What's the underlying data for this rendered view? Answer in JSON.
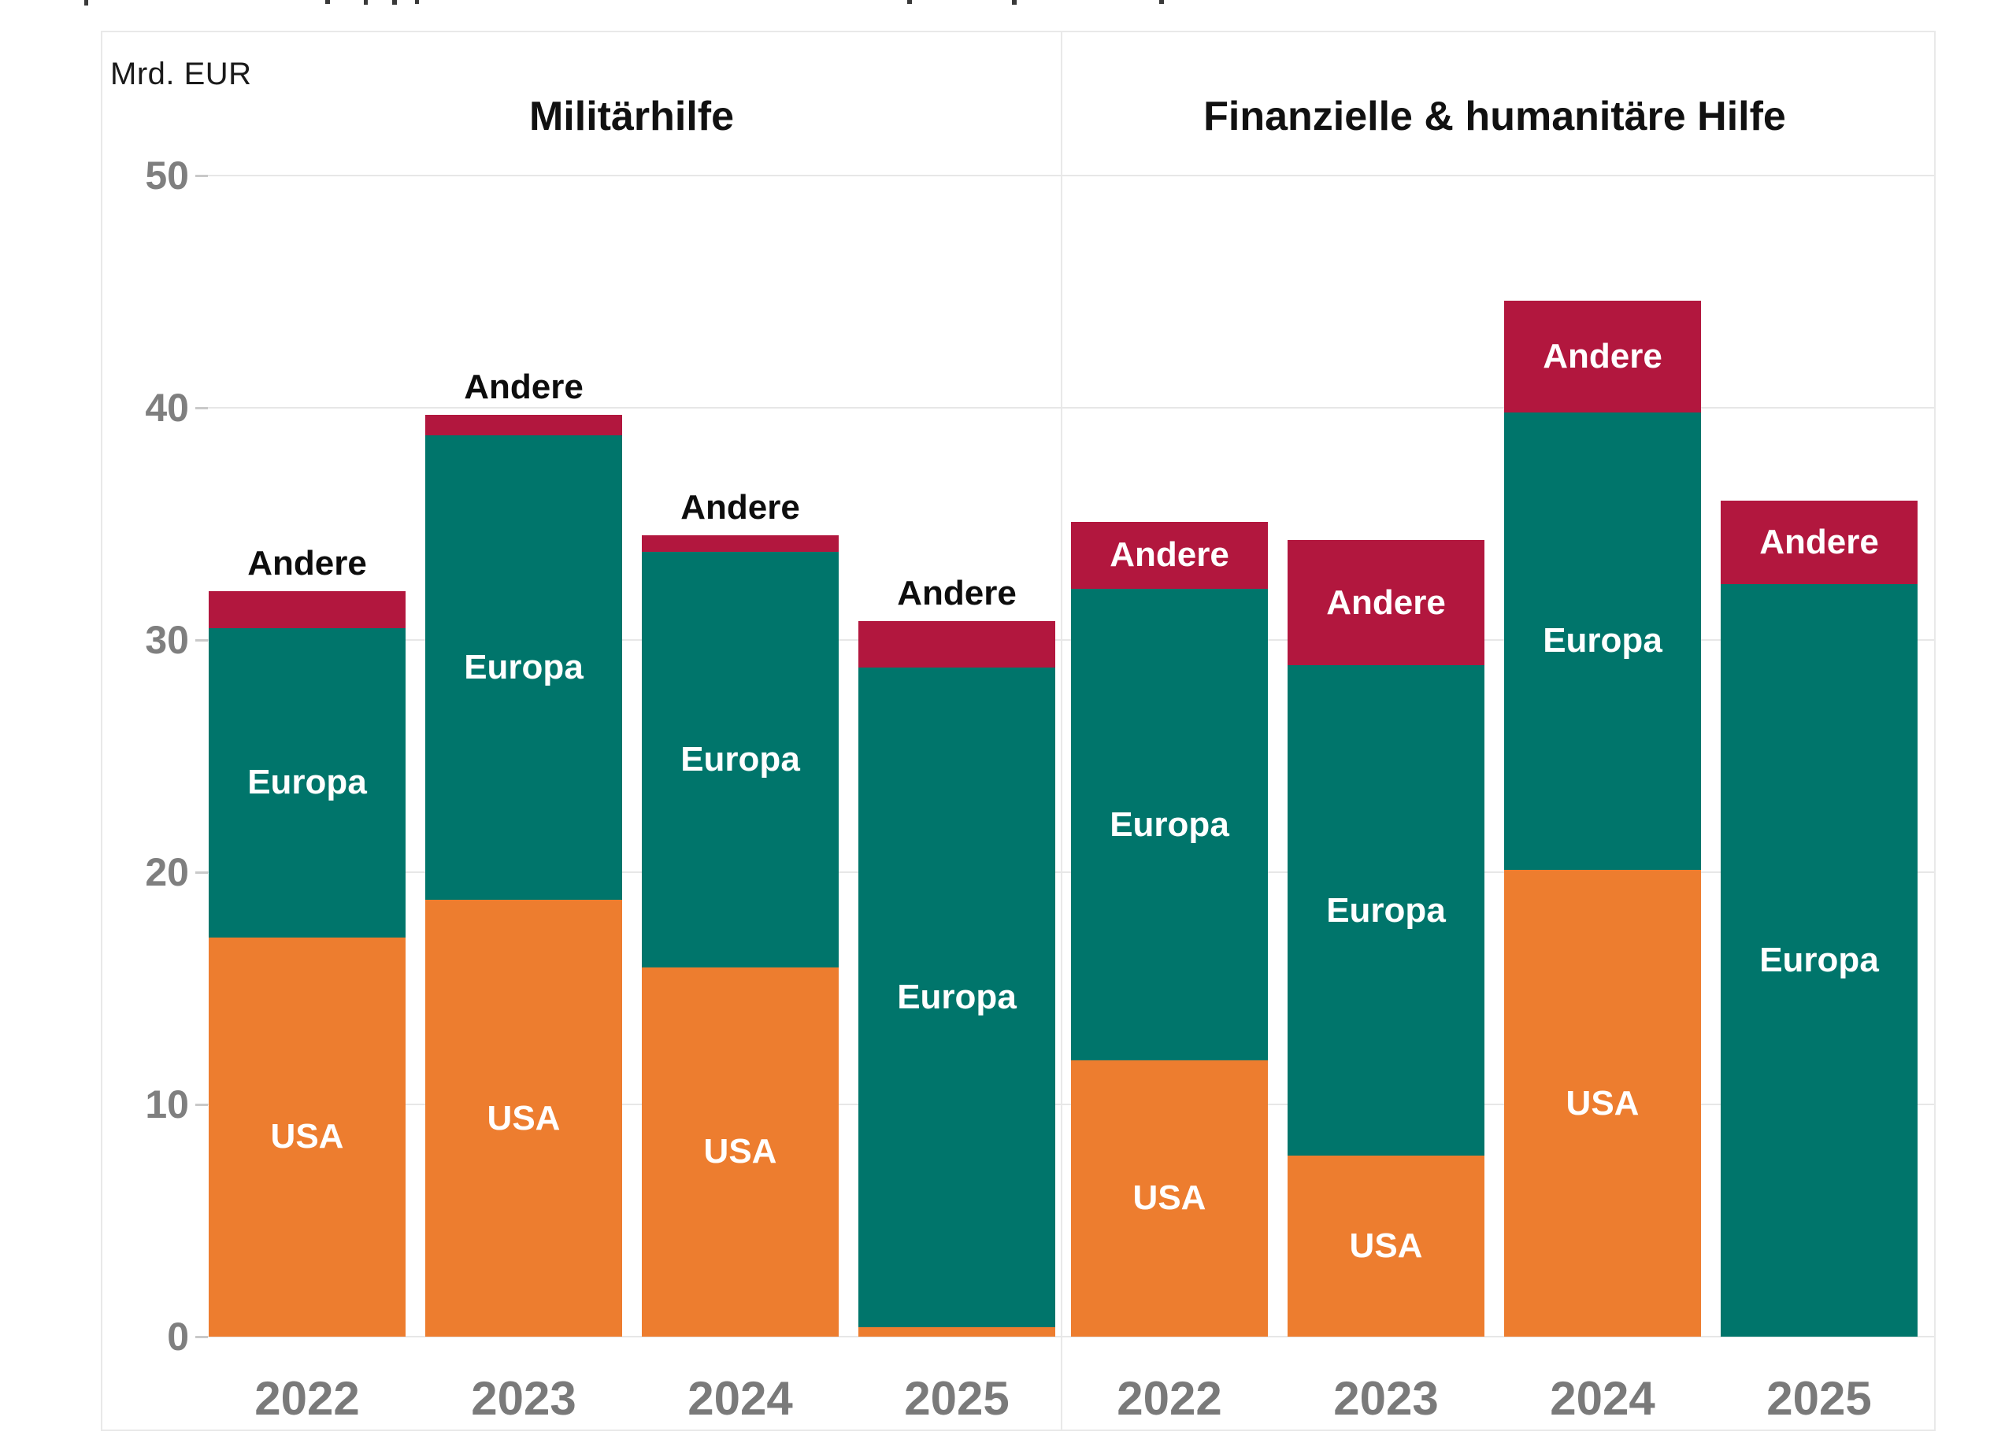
{
  "chart_data": {
    "type": "bar",
    "stacked": true,
    "unit_label": "Mrd. EUR",
    "ylabel": "Mrd. EUR",
    "ylim": [
      0,
      50
    ],
    "yticks": [
      0,
      10,
      20,
      30,
      40,
      50
    ],
    "grid": true,
    "legend": "none (labels drawn inside/above bars)",
    "series_order": [
      "USA",
      "Europa",
      "Andere"
    ],
    "colors": {
      "USA": "#ED7D2F",
      "Europa": "#00756B",
      "Andere": "#B2173E"
    },
    "label_text": {
      "USA": "USA",
      "Europa": "Europa",
      "Andere": "Andere"
    },
    "panels": [
      {
        "title": "Militärhilfe",
        "categories": [
          "2022",
          "2023",
          "2024",
          "2025"
        ],
        "bars": [
          {
            "year": "2022",
            "USA": 17.2,
            "Europa": 13.3,
            "Andere": 1.6,
            "total": 32.1,
            "usa_label": true,
            "europa_label": true,
            "andere_label": "outside"
          },
          {
            "year": "2023",
            "USA": 18.8,
            "Europa": 20.0,
            "Andere": 0.9,
            "total": 39.7,
            "usa_label": true,
            "europa_label": true,
            "andere_label": "outside"
          },
          {
            "year": "2024",
            "USA": 15.9,
            "Europa": 17.9,
            "Andere": 0.7,
            "total": 34.5,
            "usa_label": true,
            "europa_label": true,
            "andere_label": "outside"
          },
          {
            "year": "2025",
            "USA": 0.4,
            "Europa": 28.4,
            "Andere": 2.0,
            "total": 30.8,
            "usa_label": false,
            "europa_label": true,
            "andere_label": "outside"
          }
        ]
      },
      {
        "title": "Finanzielle & humanitäre Hilfe",
        "categories": [
          "2022",
          "2023",
          "2024",
          "2025"
        ],
        "bars": [
          {
            "year": "2022",
            "USA": 11.9,
            "Europa": 20.3,
            "Andere": 2.9,
            "total": 35.1,
            "usa_label": true,
            "europa_label": true,
            "andere_label": "inside"
          },
          {
            "year": "2023",
            "USA": 7.8,
            "Europa": 21.1,
            "Andere": 5.4,
            "total": 34.3,
            "usa_label": true,
            "europa_label": true,
            "andere_label": "inside"
          },
          {
            "year": "2024",
            "USA": 20.1,
            "Europa": 19.7,
            "Andere": 4.8,
            "total": 44.6,
            "usa_label": true,
            "europa_label": true,
            "andere_label": "inside"
          },
          {
            "year": "2025",
            "USA": 0.0,
            "Europa": 32.4,
            "Andere": 3.6,
            "total": 36.0,
            "usa_label": false,
            "europa_label": true,
            "andere_label": "inside"
          }
        ]
      }
    ]
  }
}
